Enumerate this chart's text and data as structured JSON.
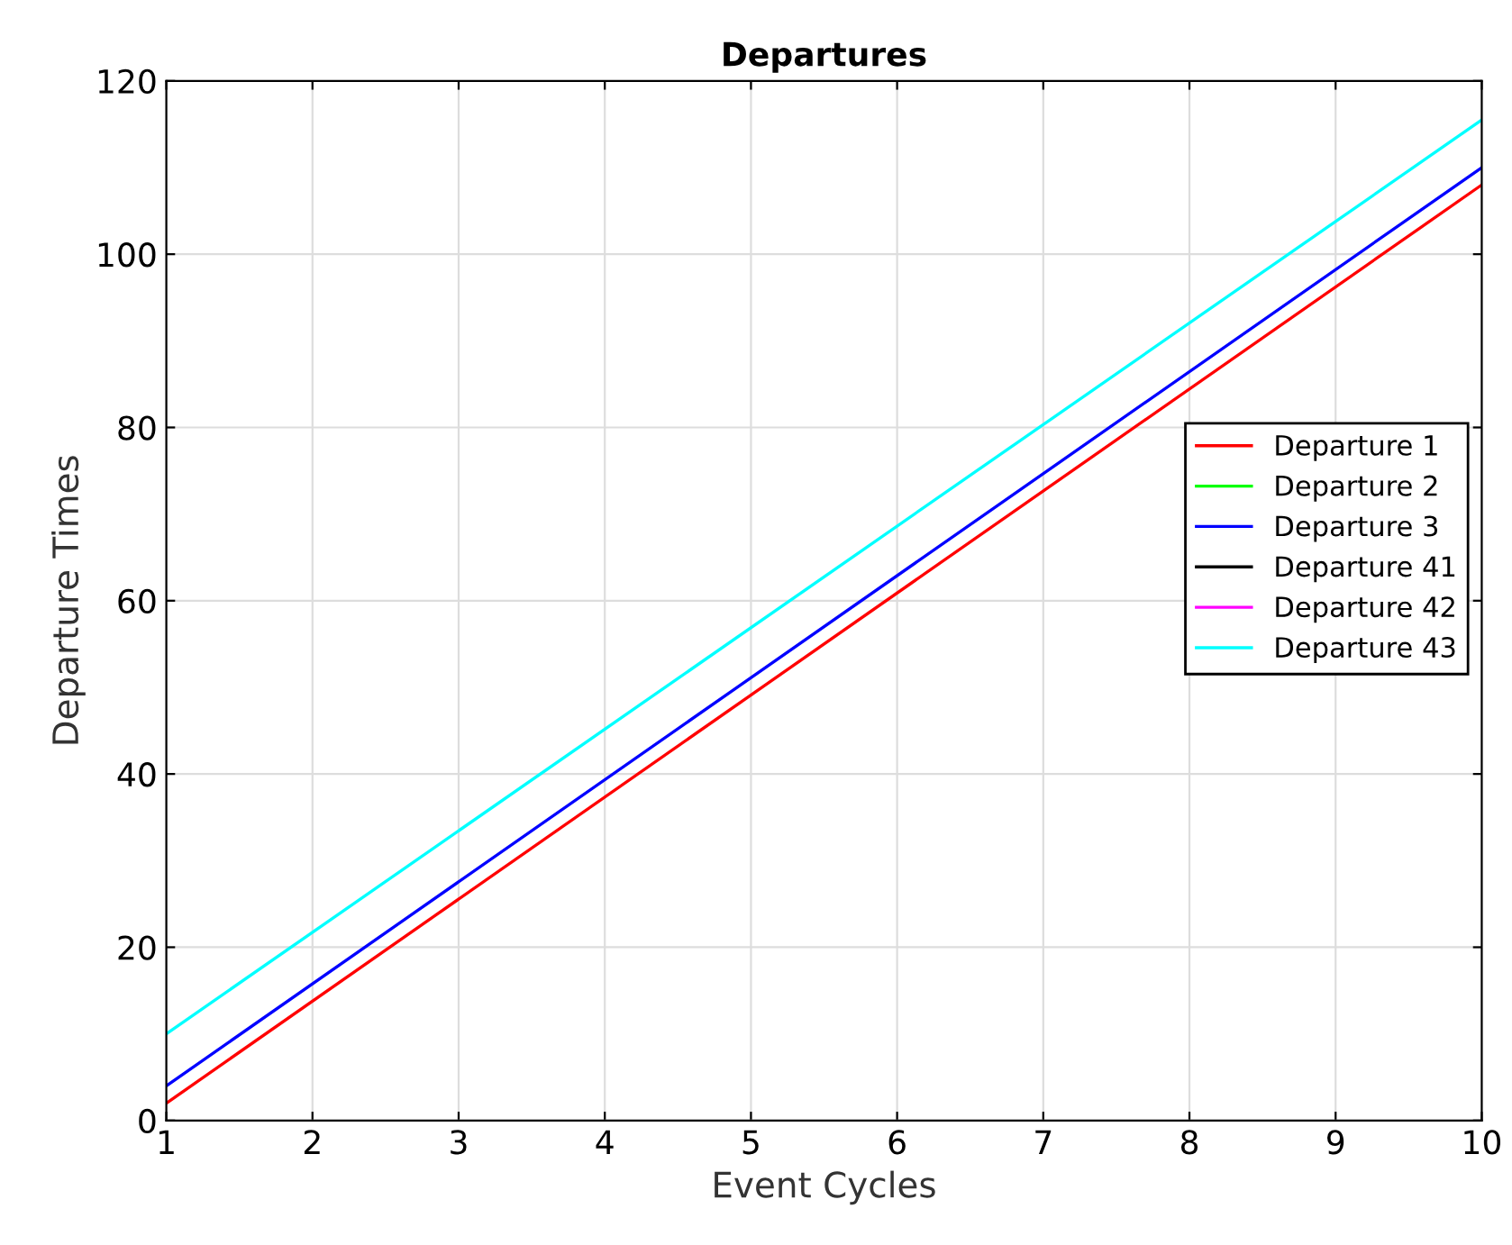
{
  "chart_data": {
    "type": "line",
    "title": "Departures",
    "xlabel": "Event Cycles",
    "ylabel": "Departure Times",
    "x": [
      1,
      10
    ],
    "series": [
      {
        "name": "Departure 1",
        "color": "#ff0000",
        "values": [
          2,
          108
        ]
      },
      {
        "name": "Departure 2",
        "color": "#00ff00",
        "values": [
          null,
          null
        ]
      },
      {
        "name": "Departure 3",
        "color": "#0000ff",
        "values": [
          4,
          110
        ]
      },
      {
        "name": "Departure 41",
        "color": "#000000",
        "values": [
          null,
          null
        ]
      },
      {
        "name": "Departure 42",
        "color": "#ff00ff",
        "values": [
          null,
          null
        ]
      },
      {
        "name": "Departure 43",
        "color": "#00ffff",
        "values": [
          10,
          115.5
        ]
      }
    ],
    "xlim": [
      1,
      10
    ],
    "xticks": [
      1,
      2,
      3,
      4,
      5,
      6,
      7,
      8,
      9,
      10
    ],
    "ylim": [
      0,
      120
    ],
    "yticks": [
      0,
      20,
      40,
      60,
      80,
      100,
      120
    ],
    "grid": true,
    "legend": "right",
    "marker": "none",
    "line_style": "solid"
  }
}
